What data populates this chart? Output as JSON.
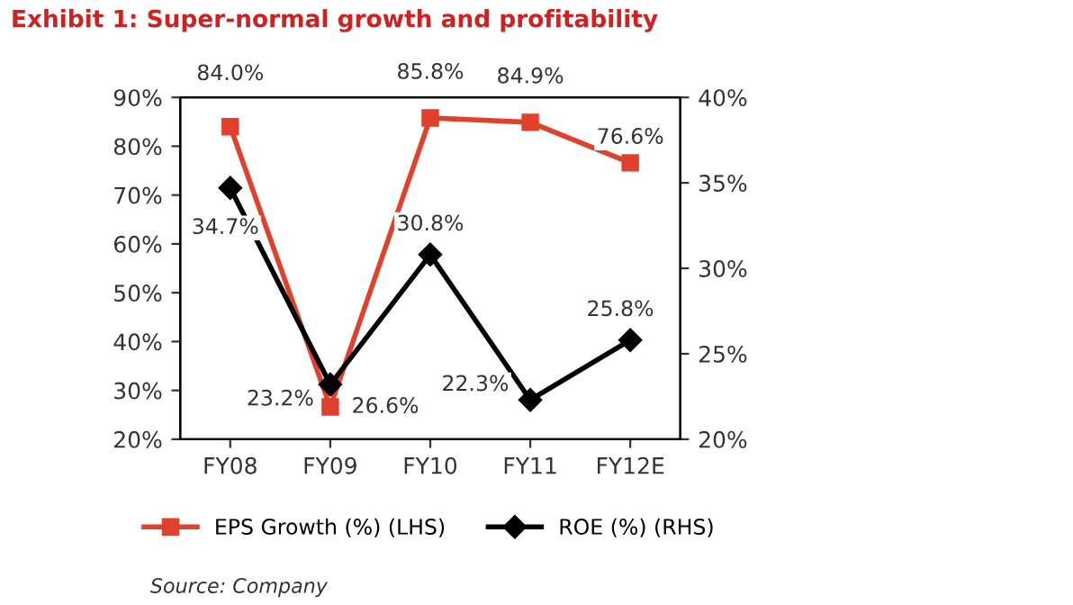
{
  "chart_data": {
    "type": "line",
    "title": "Exhibit 1: Super-normal growth and profitability",
    "categories": [
      "FY08",
      "FY09",
      "FY10",
      "FY11",
      "FY12E"
    ],
    "series": [
      {
        "name": "EPS Growth (%) (LHS)",
        "color": "#e0402c",
        "values": [
          84.0,
          26.6,
          85.8,
          84.9,
          76.6
        ],
        "value_labels": [
          "84.0%",
          "26.6%",
          "85.8%",
          "84.9%",
          "76.6%"
        ],
        "marker": "square"
      },
      {
        "name": "ROE (%) (RHS)",
        "color": "#000000",
        "values": [
          34.7,
          23.2,
          30.8,
          22.3,
          25.8
        ],
        "value_labels": [
          "34.7%",
          "23.2%",
          "30.8%",
          "22.3%",
          "25.8%"
        ],
        "marker": "diamond",
        "axis": "y2"
      }
    ],
    "ylim": [
      20,
      90
    ],
    "yticks": [
      {
        "value": 20,
        "label": "20%"
      },
      {
        "value": 30,
        "label": "30%"
      },
      {
        "value": 40,
        "label": "40%"
      },
      {
        "value": 50,
        "label": "50%"
      },
      {
        "value": 60,
        "label": "60%"
      },
      {
        "value": 70,
        "label": "70%"
      },
      {
        "value": 80,
        "label": "80%"
      },
      {
        "value": 90,
        "label": "90%"
      }
    ],
    "y2lim": [
      20,
      40
    ],
    "y2ticks": [
      {
        "value": 20,
        "label": "20%"
      },
      {
        "value": 25,
        "label": "25%"
      },
      {
        "value": 30,
        "label": "30%"
      },
      {
        "value": 35,
        "label": "35%"
      },
      {
        "value": 40,
        "label": "40%"
      }
    ],
    "grid": false,
    "legend": "bottom",
    "annotations": [
      "Source: Company"
    ]
  }
}
